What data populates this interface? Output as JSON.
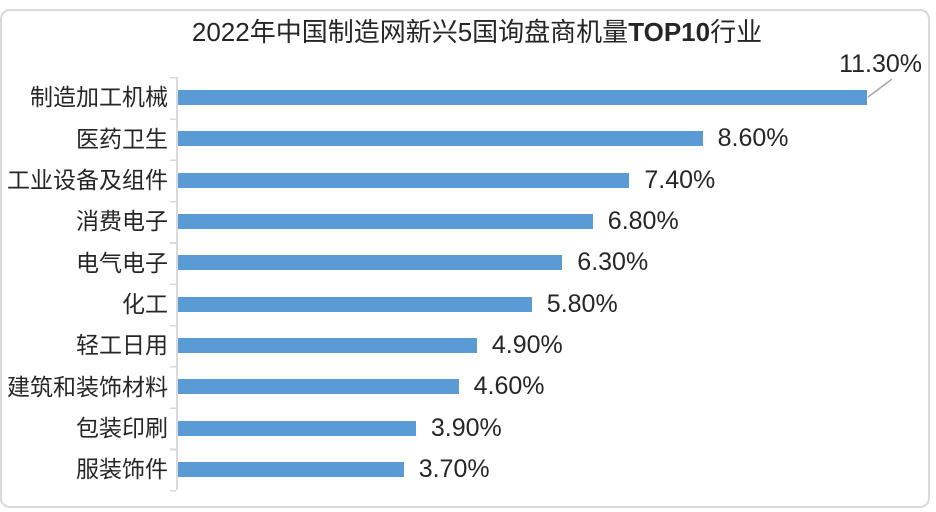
{
  "chart_data": {
    "type": "bar",
    "orientation": "horizontal",
    "title": {
      "prefix": "2022年中国制造网新兴5国询盘商机量",
      "highlight": "TOP10",
      "suffix": "行业"
    },
    "categories": [
      "制造加工机械",
      "医药卫生",
      "工业设备及组件",
      "消费电子",
      "电气电子",
      "化工",
      "轻工日用",
      "建筑和装饰材料",
      "包装印刷",
      "服装饰件"
    ],
    "values": [
      11.3,
      8.6,
      7.4,
      6.8,
      6.3,
      5.8,
      4.9,
      4.6,
      3.9,
      3.7
    ],
    "value_labels": [
      "11.30%",
      "8.60%",
      "7.40%",
      "6.80%",
      "6.30%",
      "5.80%",
      "4.90%",
      "4.60%",
      "3.90%",
      "3.70%"
    ],
    "xlim": [
      0,
      12
    ],
    "grid": false,
    "legend": false,
    "bar_color": "#5B9BD5",
    "axis_color": "#D9D9D9",
    "leader_line_color": "#A6A6A6",
    "first_label_callout": true
  }
}
